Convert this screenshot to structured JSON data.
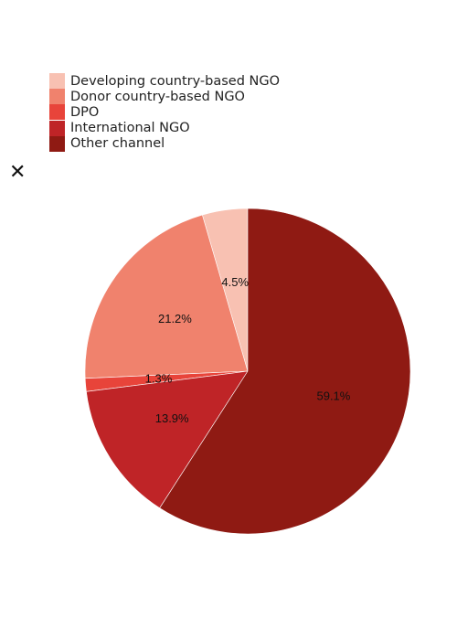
{
  "chart_data": {
    "type": "pie",
    "categories": [
      "Developing country-based NGO",
      "Donor country-based NGO",
      "DPO",
      "International NGO",
      "Other channel"
    ],
    "values": [
      4.5,
      21.2,
      1.3,
      13.9,
      59.1
    ],
    "labels": [
      "4.5%",
      "21.2%",
      "1.3%",
      "13.9%",
      "59.1%"
    ],
    "colors": [
      "#f8c1b2",
      "#f0826d",
      "#e8443a",
      "#bf2427",
      "#8f1a13"
    ],
    "legend_position": "top-left",
    "title": "",
    "xlabel": "",
    "ylabel": ""
  },
  "close_icon": {
    "glyph": "✕",
    "name": "close-icon"
  }
}
